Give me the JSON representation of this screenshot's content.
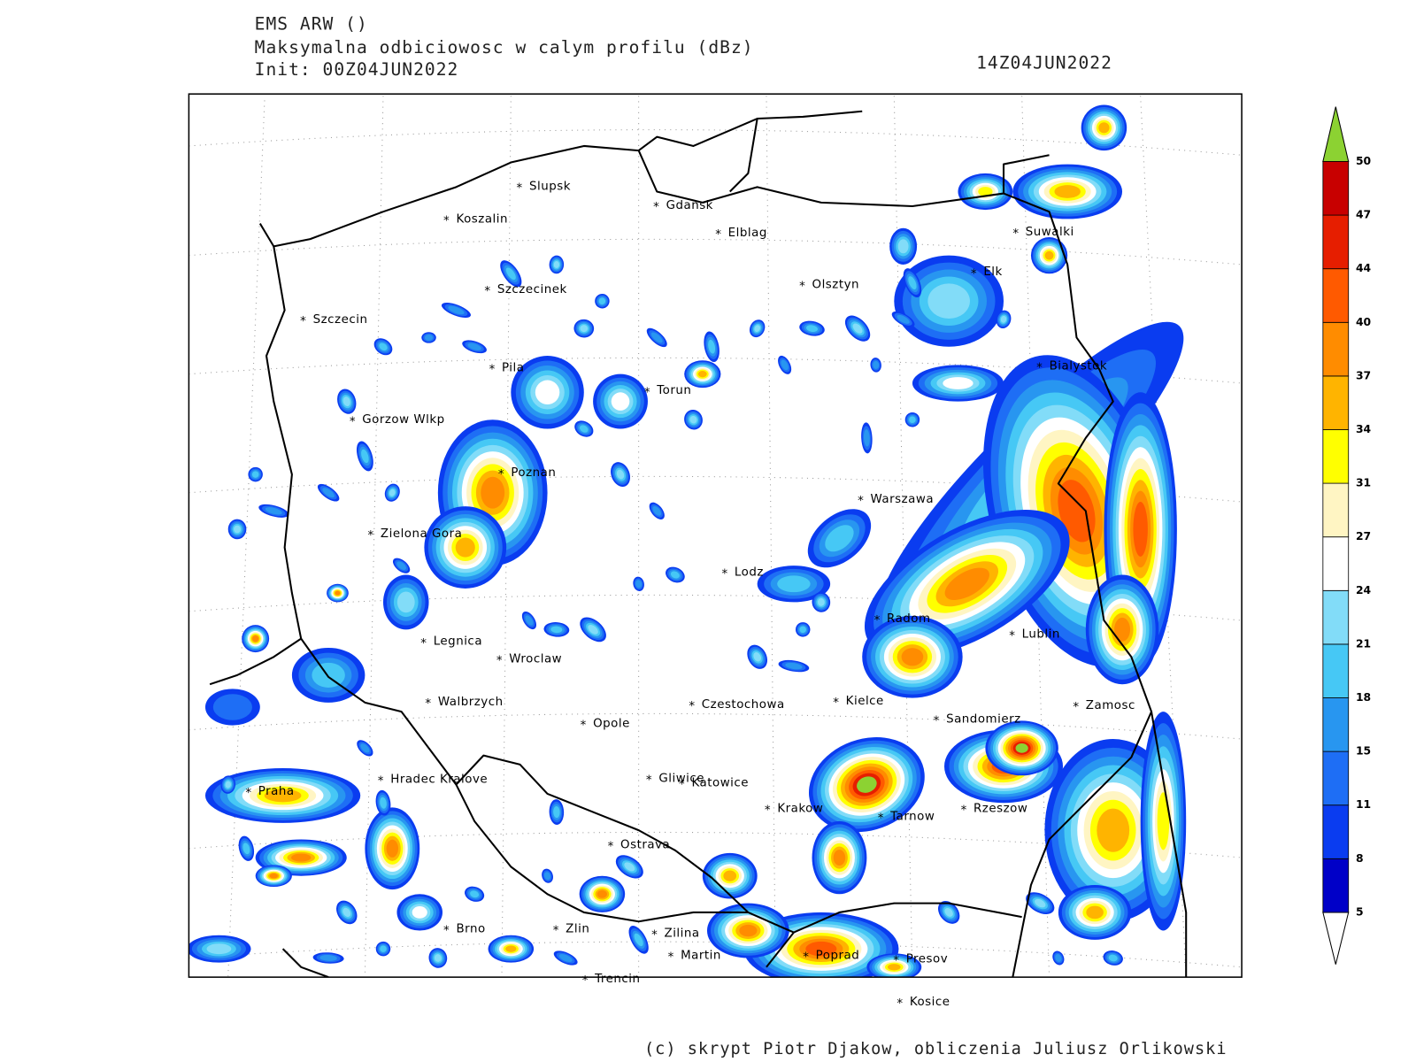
{
  "header": {
    "model": "EMS ARW ()",
    "variable": "Maksymalna odbiciowosc w calym profilu (dBz)",
    "init": "Init: 00Z04JUN2022",
    "valid": "14Z04JUN2022"
  },
  "cities": [
    "Slupsk",
    "Koszalin",
    "Gdansk",
    "Elblag",
    "Suwalki",
    "Elk",
    "Olsztyn",
    "Szczecinek",
    "Szczecin",
    "Bialystok",
    "Pila",
    "Torun",
    "Gorzow Wlkp",
    "Poznan",
    "Warszawa",
    "Zielona Gora",
    "Lodz",
    "Radom",
    "Lublin",
    "Legnica",
    "Wroclaw",
    "Walbrzych",
    "Czestochowa",
    "Kielce",
    "Zamosc",
    "Opole",
    "Sandomierz",
    "Hradec Kralove",
    "Gliwice",
    "Katowice",
    "Praha",
    "Krakow",
    "Rzeszow",
    "Tarnow",
    "Ostrava",
    "Brno",
    "Zlin",
    "Zilina",
    "Martin",
    "Poprad",
    "Presov",
    "Trencin",
    "Kosice"
  ],
  "colorbar": {
    "ticks": [
      5,
      8,
      11,
      15,
      18,
      21,
      24,
      27,
      31,
      34,
      37,
      40,
      44,
      47,
      50
    ],
    "colors": [
      "#0000c8",
      "#0a3cf0",
      "#1e6ef5",
      "#2896f0",
      "#46c8f5",
      "#82dcf8",
      "#ffffff",
      "#fff5c3",
      "#ffff00",
      "#ffb400",
      "#ff8c00",
      "#ff5a00",
      "#e61e00",
      "#c80000"
    ],
    "over_color": "#8cd232",
    "under_color": "#ffffff"
  },
  "footer": "(c) skrypt Piotr Djakow, obliczenia Juliusz Orlikowski"
}
